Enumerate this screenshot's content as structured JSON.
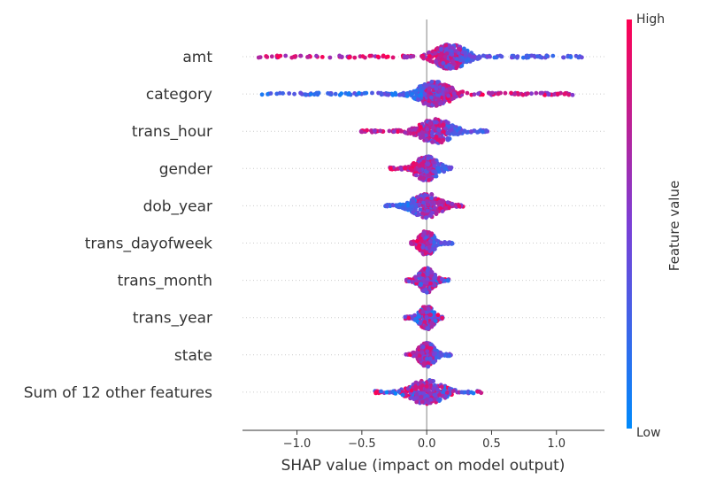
{
  "chart_data": {
    "type": "scatter",
    "subtype": "shap-beeswarm",
    "title": "",
    "xlabel": "SHAP value (impact on model output)",
    "ylabel": "",
    "xlim": [
      -1.42,
      1.37
    ],
    "xticks": [
      -1.0,
      -0.5,
      0.0,
      0.5,
      1.0
    ],
    "xtick_labels": [
      "−1.0",
      "−0.5",
      "0.0",
      "0.5",
      "1.0"
    ],
    "features": [
      {
        "name": "amt",
        "min": -1.3,
        "max": 1.22,
        "lo_color_side": "right",
        "mid": 0.18
      },
      {
        "name": "category",
        "min": -1.31,
        "max": 1.13,
        "lo_color_side": "left",
        "mid": 0.06
      },
      {
        "name": "trans_hour",
        "min": -0.52,
        "max": 0.48,
        "lo_color_side": "right",
        "mid": 0.07
      },
      {
        "name": "gender",
        "min": -0.29,
        "max": 0.19,
        "lo_color_side": "right",
        "mid": 0.0
      },
      {
        "name": "dob_year",
        "min": -0.32,
        "max": 0.28,
        "lo_color_side": "left",
        "mid": 0.0
      },
      {
        "name": "trans_dayofweek",
        "min": -0.12,
        "max": 0.2,
        "lo_color_side": "right",
        "mid": 0.0
      },
      {
        "name": "trans_month",
        "min": -0.16,
        "max": 0.17,
        "lo_color_side": "mixed",
        "mid": 0.0
      },
      {
        "name": "trans_year",
        "min": -0.17,
        "max": 0.13,
        "lo_color_side": "mixed",
        "mid": 0.0
      },
      {
        "name": "state",
        "min": -0.16,
        "max": 0.19,
        "lo_color_side": "right",
        "mid": 0.0
      },
      {
        "name": "Sum of 12 other features",
        "min": -0.41,
        "max": 0.42,
        "lo_color_side": "mixed",
        "mid": 0.0
      }
    ],
    "colorbar": {
      "label": "Feature value",
      "high_label": "High",
      "low_label": "Low",
      "low_color": "#008afb",
      "mid_color": "#7b3fd6",
      "high_color": "#ff0052"
    },
    "grid": false,
    "legend": "colorbar-right"
  }
}
